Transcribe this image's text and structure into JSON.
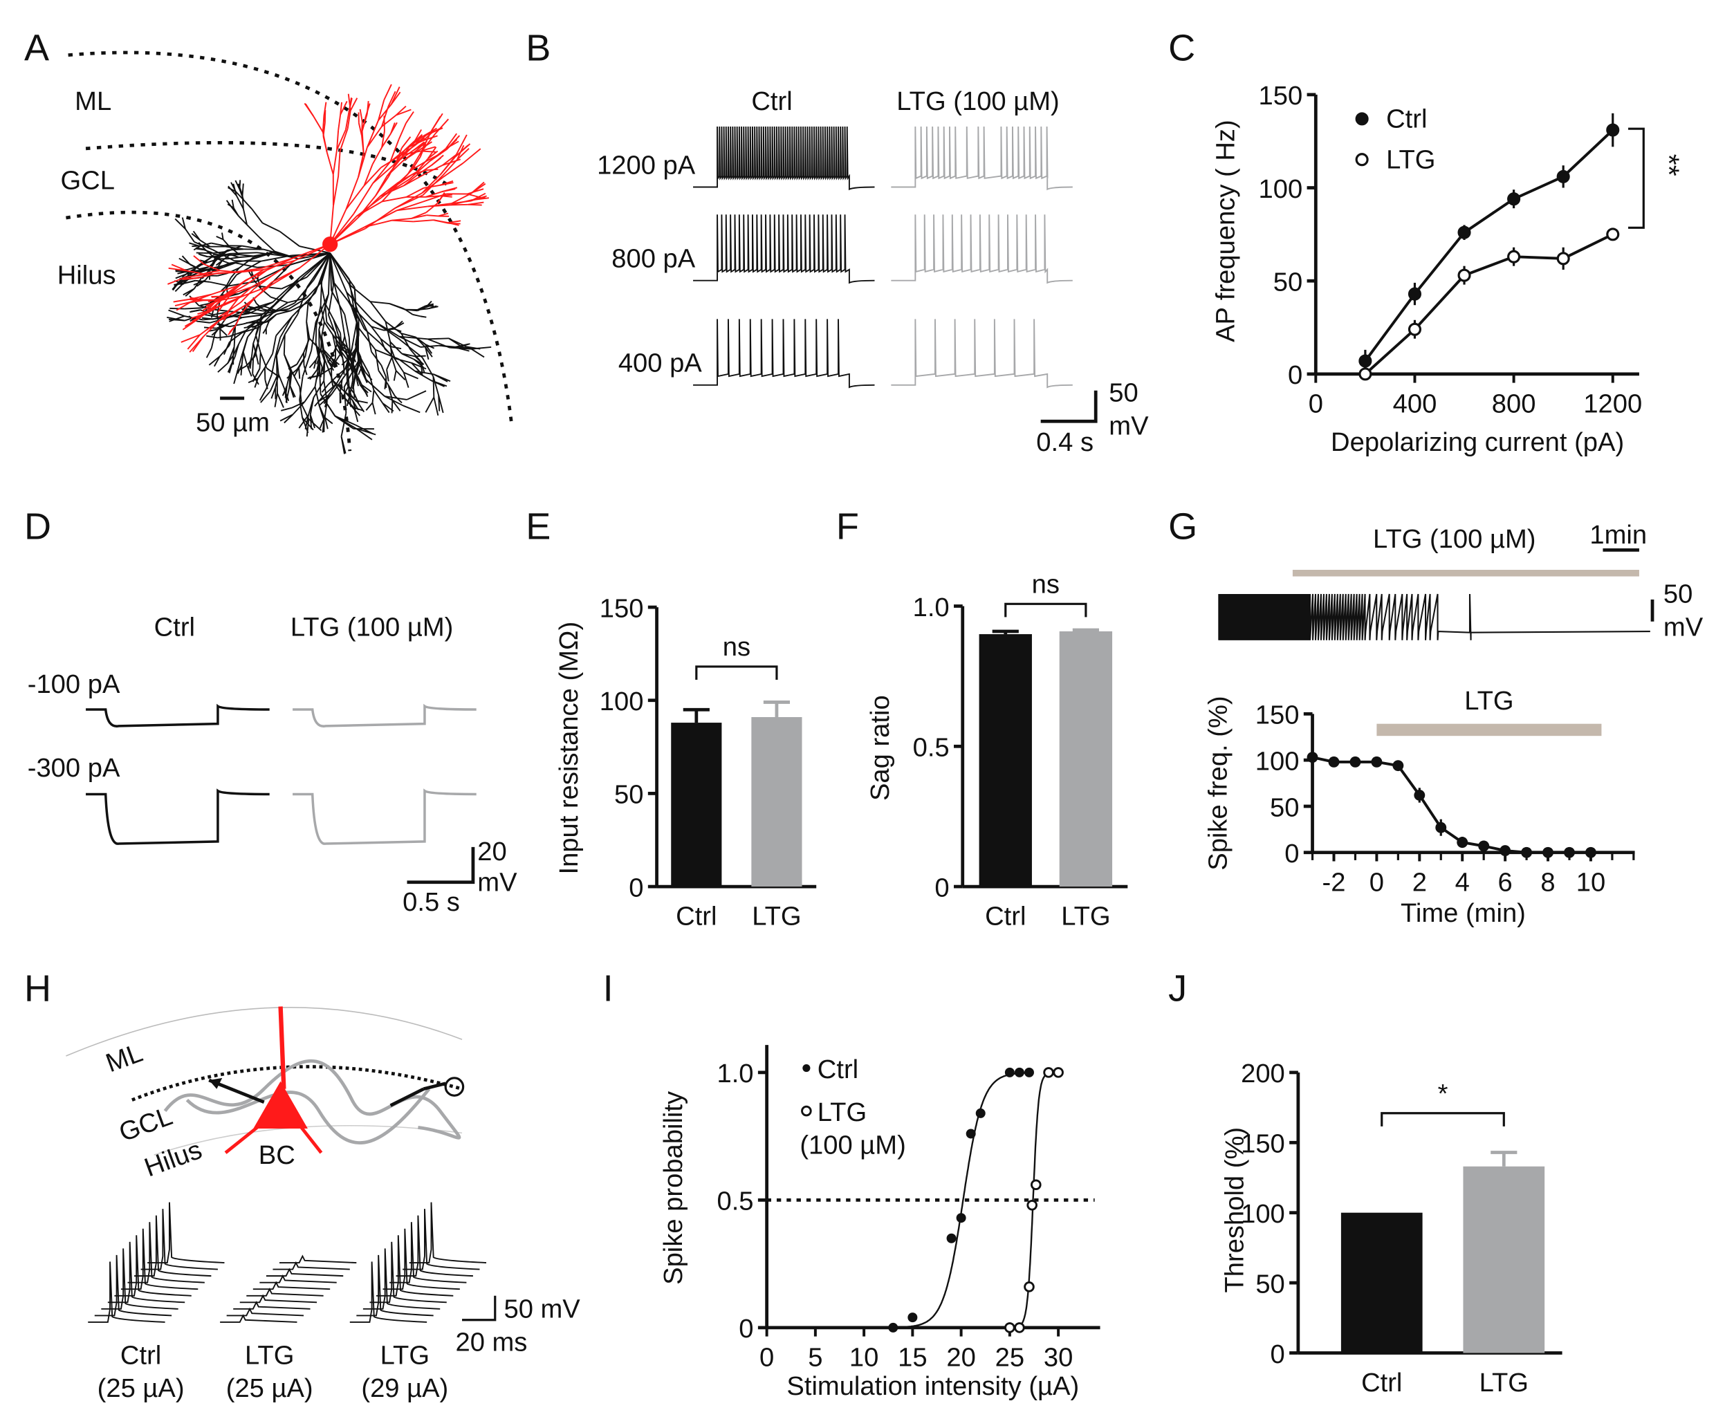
{
  "colors": {
    "ctrl": "#111111",
    "ltg": "#a7a8aa",
    "neuron_red": "#ff1a1a",
    "drug_bar": "#c4b8ac"
  },
  "panels": {
    "A": {
      "letter": "A",
      "ml": "ML",
      "gcl": "GCL",
      "hilus": "Hilus",
      "scale": "50 µm"
    },
    "B": {
      "letter": "B",
      "ctrl": "Ctrl",
      "ltg": "LTG (100 µM)",
      "rows": [
        "1200 pA",
        "800 pA",
        "400 pA"
      ],
      "scale_v": "50",
      "scale_v_unit": "mV",
      "scale_t": "0.4 s"
    },
    "C": {
      "letter": "C"
    },
    "D": {
      "letter": "D",
      "ctrl": "Ctrl",
      "ltg": "LTG (100 µM)",
      "rows": [
        "-100 pA",
        "-300 pA"
      ],
      "scale_v": "20",
      "scale_v_unit": "mV",
      "scale_t": "0.5 s"
    },
    "E": {
      "letter": "E"
    },
    "F": {
      "letter": "F"
    },
    "G": {
      "letter": "G",
      "drug": "LTG (100 µM)",
      "scale_t": "1min",
      "scale_v": "50",
      "scale_v_unit": "mV"
    },
    "H": {
      "letter": "H",
      "ml": "ML",
      "gcl": "GCL",
      "hilus": "Hilus",
      "bc": "BC",
      "captions": [
        [
          "Ctrl",
          "(25 µA)"
        ],
        [
          "LTG",
          "(25 µA)"
        ],
        [
          "LTG",
          "(29 µA)"
        ]
      ],
      "scale_v": "50 mV",
      "scale_t": "20 ms"
    },
    "I": {
      "letter": "I"
    },
    "J": {
      "letter": "J"
    }
  },
  "chart_data": [
    {
      "panel": "C",
      "type": "line",
      "xlabel": "Depolarizing current  (pA)",
      "ylabel": "AP  frequency ( Hz)",
      "xlim": [
        0,
        1200
      ],
      "ylim": [
        0,
        150
      ],
      "xticks": [
        "0",
        "400",
        "800",
        "1200"
      ],
      "xtick_values": [
        0,
        400,
        800,
        1200
      ],
      "yticks": [
        "0",
        "50",
        "100",
        "150"
      ],
      "ytick_values": [
        0,
        50,
        100,
        150
      ],
      "x": [
        200,
        400,
        600,
        800,
        1000,
        1200
      ],
      "series": [
        {
          "name": "Ctrl",
          "marker": "filled",
          "values": [
            7,
            43,
            76,
            94,
            106,
            131
          ],
          "errors": [
            6,
            6,
            4,
            5,
            6,
            9
          ]
        },
        {
          "name": "LTG",
          "marker": "open",
          "values": [
            0,
            24,
            53,
            63,
            62,
            75
          ],
          "errors": [
            1,
            5,
            5,
            5,
            6,
            2
          ]
        }
      ],
      "significance": "**",
      "legend": "top-left"
    },
    {
      "panel": "E",
      "type": "bar",
      "ylabel": "Input resistance (MΩ)",
      "ylim": [
        0,
        150
      ],
      "yticks": [
        "0",
        "50",
        "100",
        "150"
      ],
      "ytick_values": [
        0,
        50,
        100,
        150
      ],
      "categories": [
        "Ctrl",
        "LTG"
      ],
      "values": [
        88,
        91
      ],
      "errors": [
        7,
        8
      ],
      "significance": "ns"
    },
    {
      "panel": "F",
      "type": "bar",
      "ylabel": "Sag  ratio",
      "ylim": [
        0,
        1.0
      ],
      "yticks": [
        "0",
        "0.5",
        "1.0"
      ],
      "ytick_values": [
        0,
        0.5,
        1.0
      ],
      "categories": [
        "Ctrl",
        "LTG"
      ],
      "values": [
        0.9,
        0.91
      ],
      "errors": [
        0.01,
        0.005
      ],
      "significance": "ns"
    },
    {
      "panel": "G",
      "type": "line",
      "xlabel": "Time (min)",
      "ylabel": "Spike freq.  (%)",
      "xlim": [
        -3,
        12
      ],
      "ylim": [
        0,
        150
      ],
      "xticks": [
        "-2",
        "0",
        "2",
        "4",
        "6",
        "8",
        "10"
      ],
      "xtick_values": [
        -2,
        0,
        2,
        4,
        6,
        8,
        10
      ],
      "yticks": [
        "0",
        "50",
        "100",
        "150"
      ],
      "ytick_values": [
        0,
        50,
        100,
        150
      ],
      "x": [
        -3,
        -2,
        -1,
        0,
        1,
        2,
        3,
        4,
        5,
        6,
        7,
        8,
        9,
        10
      ],
      "series": [
        {
          "name": "Spike freq.",
          "values": [
            103,
            98,
            98,
            98,
            94,
            62,
            27,
            11,
            7,
            2,
            0,
            0,
            0,
            0
          ],
          "errors": [
            0,
            2,
            2,
            2,
            3,
            8,
            9,
            6,
            4,
            2,
            0,
            0,
            0,
            0
          ]
        }
      ],
      "drug_label": "LTG",
      "drug_range": [
        0,
        10.5
      ]
    },
    {
      "panel": "I",
      "type": "scatter",
      "xlabel": "Stimulation intensity (µA)",
      "ylabel": "Spike probability",
      "xlim": [
        0,
        33
      ],
      "ylim": [
        0,
        1.0
      ],
      "xticks": [
        "0",
        "5",
        "10",
        "15",
        "20",
        "25",
        "30"
      ],
      "xtick_values": [
        0,
        5,
        10,
        15,
        20,
        25,
        30
      ],
      "yticks": [
        "0",
        "0.5",
        "1.0"
      ],
      "ytick_values": [
        0,
        0.5,
        1.0
      ],
      "reference_line": 0.5,
      "series": [
        {
          "name": "Ctrl",
          "marker": "filled",
          "points": [
            [
              13,
              0
            ],
            [
              15,
              0.04
            ],
            [
              19,
              0.35
            ],
            [
              20,
              0.43
            ],
            [
              21,
              0.76
            ],
            [
              22,
              0.84
            ],
            [
              25,
              1
            ],
            [
              26,
              1
            ],
            [
              27,
              1
            ]
          ],
          "fit": {
            "x50": 20.2,
            "slope": 1.0
          }
        },
        {
          "name": "LTG",
          "name_line2": "(100 µM)",
          "marker": "open",
          "points": [
            [
              25,
              0
            ],
            [
              26,
              0
            ],
            [
              27,
              0.16
            ],
            [
              27.3,
              0.48
            ],
            [
              27.7,
              0.56
            ],
            [
              29,
              1
            ],
            [
              30,
              1
            ]
          ],
          "fit": {
            "x50": 27.4,
            "slope": 0.28
          }
        }
      ],
      "legend": "top-left"
    },
    {
      "panel": "J",
      "type": "bar",
      "ylabel": "Threshold (%)",
      "ylim": [
        0,
        200
      ],
      "yticks": [
        "0",
        "50",
        "100",
        "150",
        "200"
      ],
      "ytick_values": [
        0,
        50,
        100,
        150,
        200
      ],
      "categories": [
        "Ctrl",
        "LTG"
      ],
      "values": [
        100,
        133
      ],
      "errors": [
        0,
        10
      ],
      "significance": "*"
    }
  ]
}
